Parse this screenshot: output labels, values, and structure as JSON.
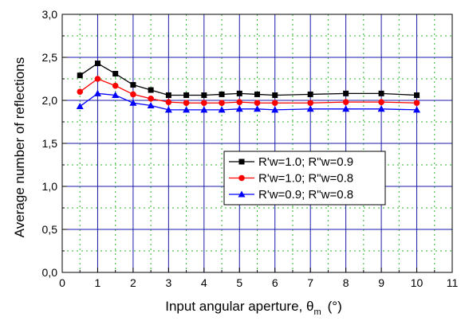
{
  "chart_data": {
    "type": "line",
    "xlabel_main": "Input angular aperture, θ",
    "xlabel_sub": "m",
    "xlabel_unit": "(°)",
    "ylabel": "Average number of reflections",
    "xlim": [
      0,
      11
    ],
    "ylim": [
      0,
      3.0
    ],
    "x_ticks": [
      "0",
      "1",
      "2",
      "3",
      "4",
      "5",
      "6",
      "7",
      "8",
      "9",
      "10",
      "11"
    ],
    "y_ticks": [
      "0,0",
      "0,5",
      "1,0",
      "1,5",
      "2,0",
      "2,5",
      "3,0"
    ],
    "grid": "major solid blue, minor dotted green",
    "legend_position": "center-right",
    "series": [
      {
        "name": "R'w=1.0; R\"w=0.9",
        "color": "#000000",
        "marker": "square",
        "x": [
          0.5,
          1.0,
          1.5,
          2.0,
          2.5,
          3.0,
          3.5,
          4.0,
          4.5,
          5.0,
          5.5,
          6.0,
          7.0,
          8.0,
          9.0,
          10.0
        ],
        "y": [
          2.29,
          2.43,
          2.31,
          2.18,
          2.12,
          2.06,
          2.06,
          2.06,
          2.07,
          2.08,
          2.07,
          2.06,
          2.07,
          2.08,
          2.08,
          2.06
        ]
      },
      {
        "name": "R'w=1.0; R\"w=0.8",
        "color": "#ff0000",
        "marker": "circle",
        "x": [
          0.5,
          1.0,
          1.5,
          2.0,
          2.5,
          3.0,
          3.5,
          4.0,
          4.5,
          5.0,
          5.5,
          6.0,
          7.0,
          8.0,
          9.0,
          10.0
        ],
        "y": [
          2.1,
          2.25,
          2.17,
          2.07,
          2.02,
          1.98,
          1.97,
          1.97,
          1.97,
          1.98,
          1.97,
          1.97,
          1.97,
          1.98,
          1.98,
          1.97
        ]
      },
      {
        "name": "R'w=0.9; R\"w=0.8",
        "color": "#0000ff",
        "marker": "triangle",
        "x": [
          0.5,
          1.0,
          1.5,
          2.0,
          2.5,
          3.0,
          3.5,
          4.0,
          4.5,
          5.0,
          5.5,
          6.0,
          7.0,
          8.0,
          9.0,
          10.0
        ],
        "y": [
          1.93,
          2.08,
          2.06,
          1.97,
          1.94,
          1.89,
          1.89,
          1.89,
          1.89,
          1.9,
          1.9,
          1.89,
          1.9,
          1.9,
          1.9,
          1.89
        ]
      }
    ]
  }
}
